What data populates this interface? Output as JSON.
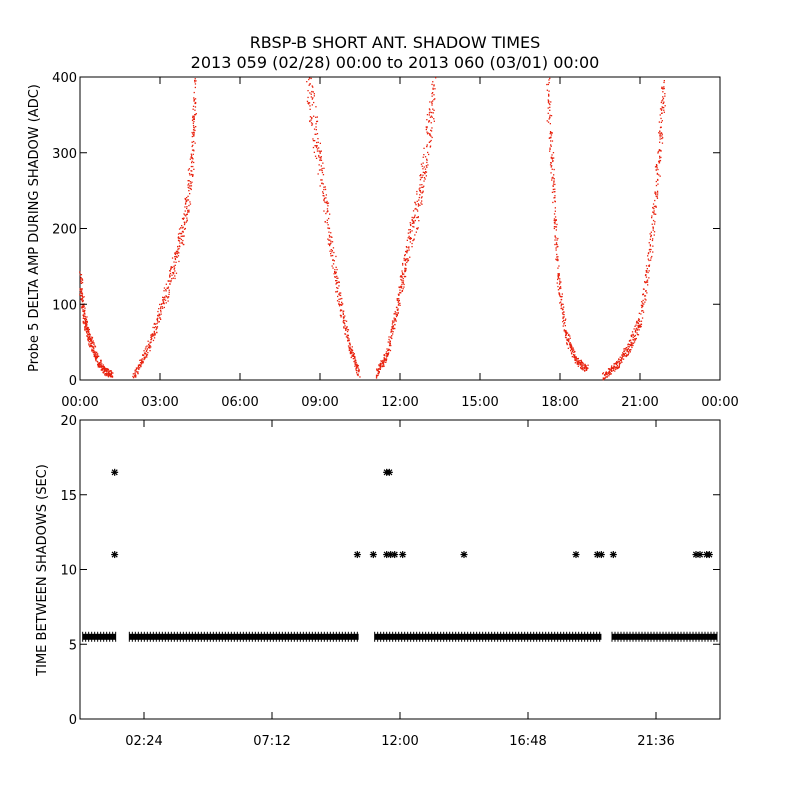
{
  "header": {
    "title": "RBSP-B SHORT ANT. SHADOW TIMES",
    "subtitle": "2013 059 (02/28) 00:00 to 2013 060 (03/01) 00:00"
  },
  "colors": {
    "top_points": "#e8200c",
    "bottom_points": "#000000",
    "axes": "#000000"
  },
  "chart_data": [
    {
      "type": "scatter",
      "ylabel": "Probe 5 DELTA AMP DURING SHADOW (ADC)",
      "x_unit": "hours",
      "xlim": [
        0,
        24
      ],
      "ylim": [
        0,
        400
      ],
      "x_ticks": [
        0,
        3,
        6,
        9,
        12,
        15,
        18,
        21,
        24
      ],
      "x_tick_labels": [
        "00:00",
        "03:00",
        "06:00",
        "09:00",
        "12:00",
        "15:00",
        "18:00",
        "21:00",
        "00:00"
      ],
      "y_ticks": [
        0,
        100,
        200,
        300,
        400
      ],
      "series": [
        {
          "color": "#e8200c",
          "segments": [
            {
              "x": [
                0.0,
                0.15,
                0.35,
                0.6,
                0.9,
                1.2
              ],
              "y": [
                130,
                80,
                55,
                30,
                12,
                8
              ]
            },
            {
              "x": [
                2.0,
                2.5,
                3.0,
                3.5,
                3.9,
                4.2,
                4.3
              ],
              "y": [
                5,
                40,
                90,
                150,
                210,
                290,
                390
              ]
            },
            {
              "x": [
                8.5,
                8.9,
                9.3,
                9.7,
                10.1,
                10.45
              ],
              "y": [
                400,
                310,
                200,
                110,
                45,
                8
              ]
            },
            {
              "x": [
                11.1,
                11.5,
                11.9,
                12.2,
                12.6,
                13.0,
                13.3
              ],
              "y": [
                8,
                35,
                100,
                160,
                220,
                310,
                400
              ]
            },
            {
              "x": [
                17.5,
                17.7,
                17.9,
                18.2,
                18.6,
                19.0
              ],
              "y": [
                400,
                280,
                140,
                60,
                25,
                15
              ]
            },
            {
              "x": [
                19.6,
                20.1,
                20.6,
                21.0,
                21.4,
                21.7,
                21.9
              ],
              "y": [
                5,
                20,
                45,
                80,
                180,
                300,
                400
              ]
            }
          ]
        }
      ]
    },
    {
      "type": "scatter",
      "ylabel": "TIME BETWEEN SHADOWS (SEC)",
      "x_unit": "hours",
      "xlim": [
        0,
        24
      ],
      "ylim": [
        0,
        20
      ],
      "x_ticks": [
        2.4,
        7.2,
        12.0,
        16.8,
        21.6
      ],
      "x_tick_labels": [
        "02:24",
        "07:12",
        "12:00",
        "16:48",
        "21:36"
      ],
      "y_ticks": [
        0,
        5,
        10,
        15,
        20
      ],
      "series": [
        {
          "color": "#000000",
          "marker": "asterisk",
          "baseline_value": 5.5,
          "baseline_runs": [
            [
              0.1,
              1.35
            ],
            [
              1.85,
              10.45
            ],
            [
              11.05,
              19.55
            ],
            [
              19.95,
              23.9
            ]
          ],
          "points": [
            {
              "x": 1.3,
              "y": 16.5
            },
            {
              "x": 1.3,
              "y": 11.0
            },
            {
              "x": 10.4,
              "y": 11.0
            },
            {
              "x": 11.0,
              "y": 11.0
            },
            {
              "x": 11.5,
              "y": 16.5
            },
            {
              "x": 11.6,
              "y": 16.5
            },
            {
              "x": 11.5,
              "y": 11.0
            },
            {
              "x": 11.65,
              "y": 11.0
            },
            {
              "x": 11.8,
              "y": 11.0
            },
            {
              "x": 12.1,
              "y": 11.0
            },
            {
              "x": 14.4,
              "y": 11.0
            },
            {
              "x": 18.6,
              "y": 11.0
            },
            {
              "x": 19.4,
              "y": 11.0
            },
            {
              "x": 19.55,
              "y": 11.0
            },
            {
              "x": 20.0,
              "y": 11.0
            },
            {
              "x": 23.1,
              "y": 11.0
            },
            {
              "x": 23.25,
              "y": 11.0
            },
            {
              "x": 23.5,
              "y": 11.0
            },
            {
              "x": 23.6,
              "y": 11.0
            }
          ]
        }
      ]
    }
  ]
}
